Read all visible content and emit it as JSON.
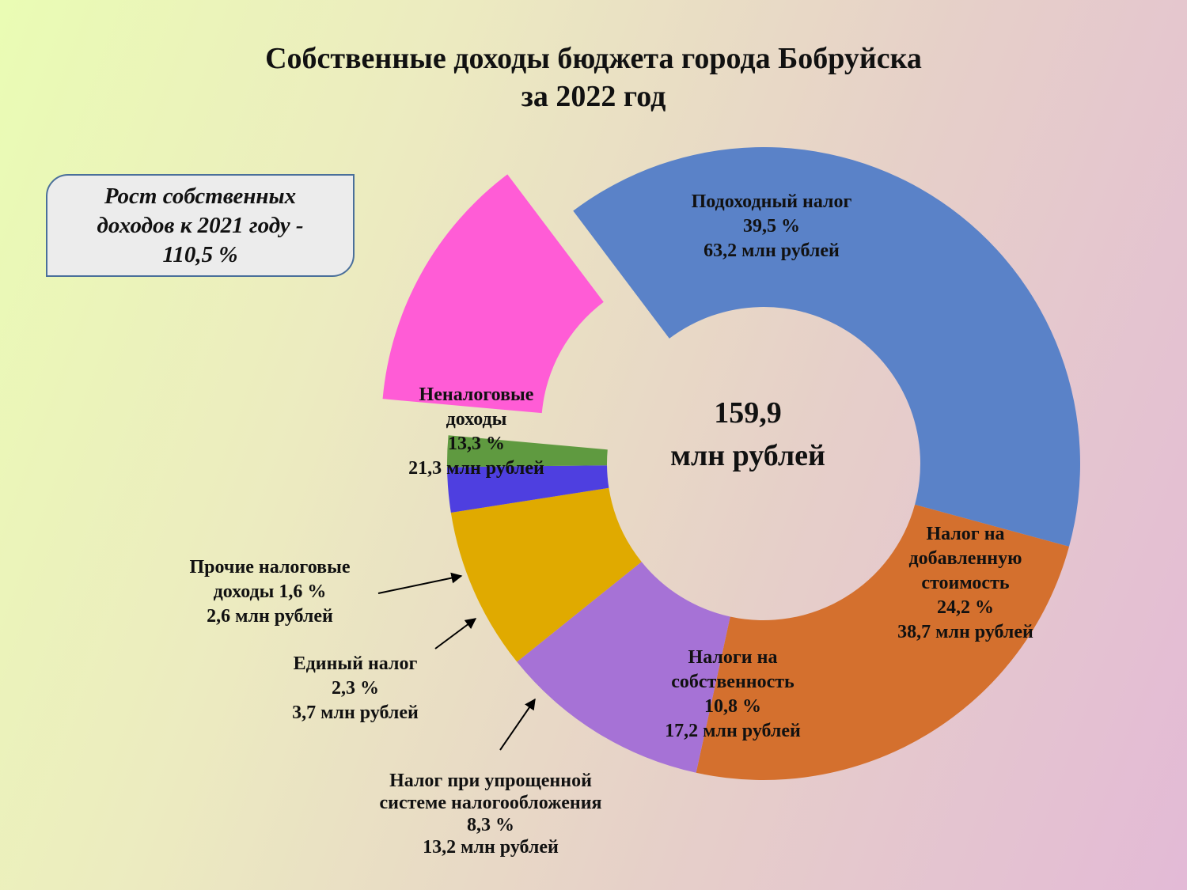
{
  "title": {
    "line1": "Собственные доходы бюджета города Бобруйска",
    "line2": "за 2022 год"
  },
  "growth_note": "Рост собственных доходов к 2021 году - 110,5 %",
  "center": {
    "value": "159,9",
    "unit": "млн рублей"
  },
  "chart_data": {
    "type": "pie",
    "donut": true,
    "title": "Собственные доходы бюджета города Бобруйска за 2022 год",
    "total": 159.9,
    "unit": "млн рублей",
    "series": [
      {
        "key": "income_tax",
        "name_lines": [
          "Подоходный налог"
        ],
        "pct_label": "39,5 %",
        "amount_label": "63,2 млн рублей",
        "percent": 39.5,
        "value": 63.2,
        "color": "#5a82c8",
        "exploded": false
      },
      {
        "key": "vat",
        "name_lines": [
          "Налог на",
          "добавленную",
          "стоимость"
        ],
        "pct_label": "24,2 %",
        "amount_label": "38,7 млн рублей",
        "percent": 24.2,
        "value": 38.7,
        "color": "#d4702e",
        "exploded": false
      },
      {
        "key": "property_taxes",
        "name_lines": [
          "Налоги на",
          "собственность"
        ],
        "pct_label": "10,8 %",
        "amount_label": "17,2 млн рублей",
        "percent": 10.8,
        "value": 17.2,
        "color": "#a672d6",
        "exploded": false
      },
      {
        "key": "simplified_tax",
        "name_lines": [
          "Налог при упрощенной",
          "системе налогообложения"
        ],
        "pct_label": "8,3 %",
        "amount_label": "13,2 млн рублей",
        "percent": 8.3,
        "value": 13.2,
        "color": "#e0aa00",
        "exploded": false
      },
      {
        "key": "single_tax",
        "name_lines": [
          "Единый налог"
        ],
        "pct_label": "2,3 %",
        "amount_label": "3,7 млн рублей",
        "percent": 2.3,
        "value": 3.7,
        "color": "#4e3fe0",
        "exploded": false
      },
      {
        "key": "other_tax",
        "name_lines": [
          "Прочие налоговые",
          "доходы 1,6 %"
        ],
        "pct_label": "",
        "amount_label": "2,6 млн рублей",
        "percent": 1.6,
        "value": 2.6,
        "color": "#5f9a40",
        "exploded": false
      },
      {
        "key": "non_tax",
        "name_lines": [
          "Неналоговые",
          "доходы"
        ],
        "pct_label": "13,3 %",
        "amount_label": "21,3 млн рублей",
        "percent": 13.3,
        "value": 21.3,
        "color": "#ff5cd6",
        "exploded": true
      }
    ]
  }
}
